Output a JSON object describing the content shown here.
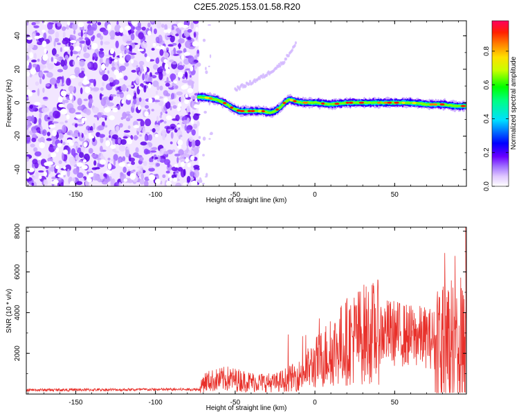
{
  "title": "C2E5.2025.153.01.58.R20",
  "chart_data": [
    {
      "type": "heatmap",
      "xlabel": "Height of straight line (km)",
      "ylabel": "Frequency (Hz)",
      "xlim": [
        -181,
        95
      ],
      "ylim": [
        -50,
        49
      ],
      "x_ticks": [
        -150,
        -100,
        -50,
        0,
        50
      ],
      "y_ticks": [
        -40,
        -20,
        0,
        20,
        40
      ],
      "noise_region_x": [
        -181,
        -73
      ],
      "colorbar": {
        "label": "Normalized spectral amplitude",
        "range": [
          0,
          0.98
        ],
        "ticks": [
          0.0,
          0.2,
          0.4,
          0.6,
          0.8
        ],
        "colors": [
          "#ffffff",
          "#e8d0ff",
          "#a070ff",
          "#5500ff",
          "#0000ff",
          "#00ffff",
          "#00ff00",
          "#ffff00",
          "#ff8000",
          "#ff0000",
          "#ff0060"
        ]
      },
      "ridge": {
        "x": [
          -73,
          -68,
          -62,
          -57,
          -52,
          -47,
          -40,
          -33,
          -28,
          -25,
          -22,
          -19,
          -16,
          -13,
          -8,
          0,
          10,
          20,
          30,
          40,
          50,
          60,
          70,
          80,
          88,
          95
        ],
        "y": [
          3.5,
          3,
          2,
          0,
          -3,
          -5,
          -5,
          -5,
          -6,
          -5,
          -3,
          0,
          2,
          1,
          0,
          0,
          -1,
          0,
          0,
          0,
          0,
          0,
          -1,
          -1,
          -2,
          -2
        ]
      },
      "faint_arc": {
        "x": [
          -50,
          -40,
          -30,
          -20,
          -12
        ],
        "y": [
          8,
          12,
          17,
          24,
          35
        ]
      }
    },
    {
      "type": "line",
      "xlabel": "Height of straight line (km)",
      "ylabel": "SNR (10 * v/v)",
      "xlim": [
        -181,
        95
      ],
      "ylim": [
        0,
        8200
      ],
      "x_ticks": [
        -150,
        -100,
        -50,
        0,
        50
      ],
      "y_ticks": [
        2000,
        4000,
        6000,
        8000
      ],
      "color": "#e8302a",
      "trend": {
        "x": [
          -181,
          -72,
          -70,
          -55,
          -40,
          -25,
          -10,
          0,
          10,
          20,
          30,
          40,
          50,
          60,
          70,
          80,
          88,
          95
        ],
        "y": [
          200,
          230,
          600,
          750,
          600,
          550,
          900,
          1500,
          2100,
          2600,
          2950,
          3050,
          3000,
          2850,
          2800,
          2600,
          2400,
          2400
        ]
      }
    }
  ]
}
